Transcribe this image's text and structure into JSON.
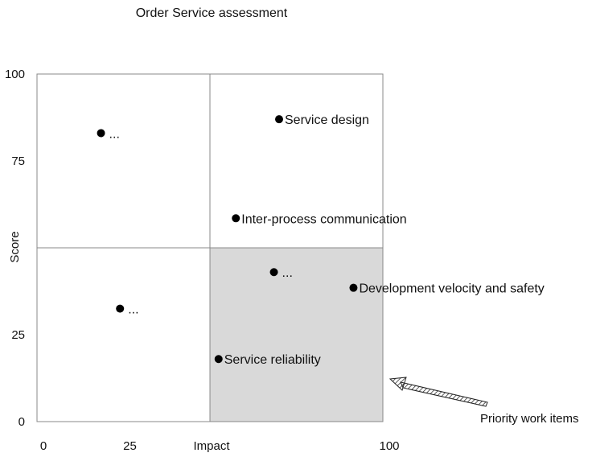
{
  "chart_data": {
    "type": "scatter",
    "title": "Order Service assessment",
    "xlabel": "Impact",
    "ylabel": "Score",
    "xlim": [
      0,
      100
    ],
    "ylim": [
      0,
      100
    ],
    "x_ticks": [
      {
        "value": 0,
        "label": "0"
      },
      {
        "value": 25,
        "label": "25"
      },
      {
        "value": 100,
        "label": "100"
      }
    ],
    "y_ticks": [
      {
        "value": 0,
        "label": "0"
      },
      {
        "value": 25,
        "label": "25"
      },
      {
        "value": 75,
        "label": "75"
      },
      {
        "value": 100,
        "label": "100"
      }
    ],
    "quadrant_split": {
      "x": 50,
      "y": 50
    },
    "highlight_quadrant": "bottom-right",
    "highlight_color": "#d9d9d9",
    "points": [
      {
        "label": "Service design",
        "x": 70,
        "y": 87
      },
      {
        "label": "Inter-process communication",
        "x": 57.5,
        "y": 58.5
      },
      {
        "label": "...",
        "x": 18.5,
        "y": 83
      },
      {
        "label": "...",
        "x": 68.5,
        "y": 43
      },
      {
        "label": "Development velocity and safety",
        "x": 91.5,
        "y": 38.5
      },
      {
        "label": "...",
        "x": 24,
        "y": 32.5
      },
      {
        "label": "Service reliability",
        "x": 52.5,
        "y": 18
      }
    ],
    "annotation": {
      "text": "Priority work items",
      "points_to": "bottom-right quadrant"
    }
  }
}
